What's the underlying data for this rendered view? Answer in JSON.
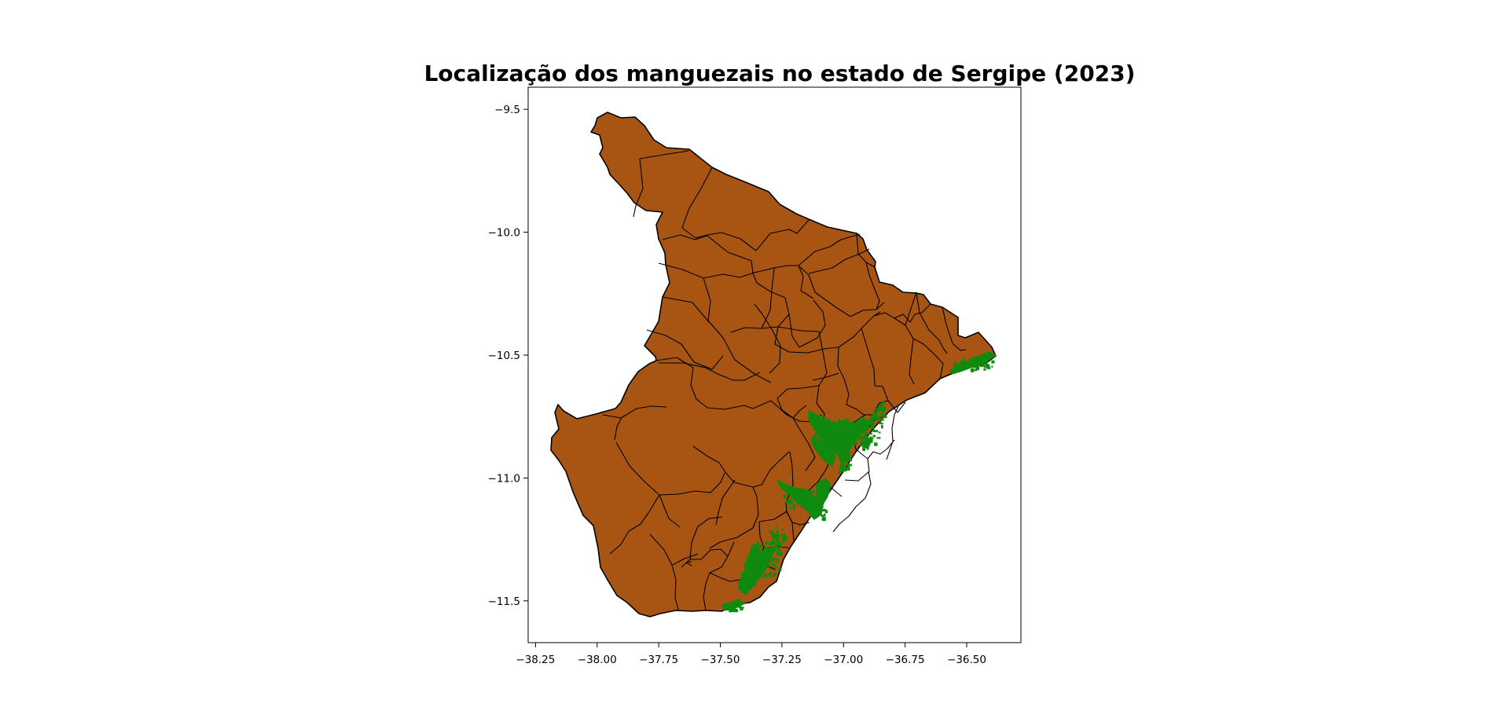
{
  "title": "Localização dos manguezais no estado de Sergipe (2023)",
  "colors": {
    "land": "#a85513",
    "mangrove": "#0f8a0f",
    "outline": "#000000"
  },
  "x_axis": {
    "ticks": [
      -38.25,
      -38.0,
      -37.75,
      -37.5,
      -37.25,
      -37.0,
      -36.75,
      -36.5
    ],
    "labels": [
      "−38.25",
      "−38.00",
      "−37.75",
      "−37.50",
      "−37.25",
      "−37.00",
      "−36.75",
      "−36.50"
    ]
  },
  "y_axis": {
    "ticks": [
      -9.5,
      -10.0,
      -10.5,
      -11.0,
      -11.5
    ],
    "labels": [
      "−9.5",
      "−10.0",
      "−10.5",
      "−11.0",
      "−11.5"
    ]
  },
  "map_data": {
    "xlim": [
      -38.28,
      -36.28
    ],
    "ylim": [
      -11.67,
      -9.41
    ],
    "layers": [
      "municipalities",
      "mangroves"
    ]
  }
}
